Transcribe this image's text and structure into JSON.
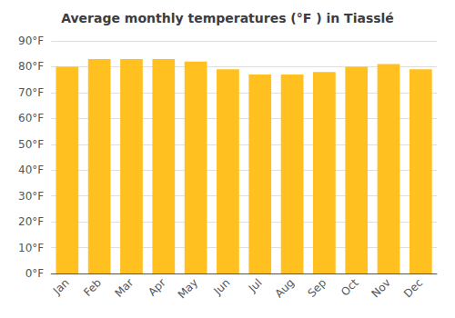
{
  "chart_data": {
    "type": "bar",
    "title": "Average monthly temperatures (°F ) in Tiasslé",
    "categories": [
      "Jan",
      "Feb",
      "Mar",
      "Apr",
      "May",
      "Jun",
      "Jul",
      "Aug",
      "Sep",
      "Oct",
      "Nov",
      "Dec"
    ],
    "values": [
      80,
      83,
      83,
      83,
      82,
      79,
      77,
      77,
      78,
      80,
      81,
      79
    ],
    "color": "#FFC020",
    "ylim": [
      0,
      90
    ],
    "yticks": [
      {
        "value": 0,
        "label": "0°F"
      },
      {
        "value": 10,
        "label": "10°F"
      },
      {
        "value": 20,
        "label": "20°F"
      },
      {
        "value": 30,
        "label": "30°F"
      },
      {
        "value": 40,
        "label": "40°F"
      },
      {
        "value": 50,
        "label": "50°F"
      },
      {
        "value": 60,
        "label": "60°F"
      },
      {
        "value": 70,
        "label": "70°F"
      },
      {
        "value": 80,
        "label": "80°F"
      },
      {
        "value": 90,
        "label": "90°F"
      }
    ],
    "grid": true
  }
}
